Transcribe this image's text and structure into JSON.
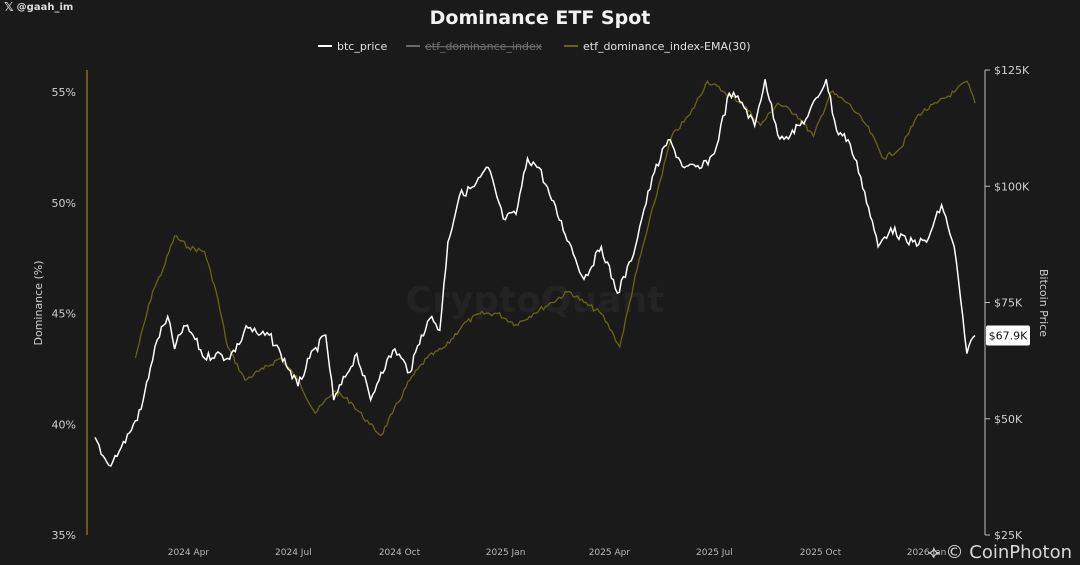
{
  "watermark_handle": "@gaah_im",
  "credit": "CoinPhoton",
  "colors": {
    "btc_price": "#ffffff",
    "etf_dominance_index": "#5a5a5a",
    "etf_dominance_ema": "#6b6414",
    "left_axis_line": "#8a6a1a",
    "background": "#1a1a1a",
    "price_badge_bg": "#ffffff",
    "price_badge_text": "#111111"
  },
  "chart_data": {
    "type": "line",
    "title": "Dominance ETF Spot",
    "ylabel": "Dominance (%)",
    "y2label": "Bitcoin Price",
    "xlim": [
      "2024-01-11",
      "2026-02-12"
    ],
    "ylim": [
      35,
      56
    ],
    "y2lim": [
      25000,
      125000
    ],
    "x_ticks": [
      "2024 Apr",
      "2024 Jul",
      "2024 Oct",
      "2025 Jan",
      "2025 Apr",
      "2025 Jul",
      "2025 Oct",
      "2026 Jan"
    ],
    "x_tick_dates": [
      "2024-04-01",
      "2024-07-01",
      "2024-10-01",
      "2025-01-01",
      "2025-04-01",
      "2025-07-01",
      "2025-10-01",
      "2026-01-01"
    ],
    "y_ticks": [
      "35%",
      "40%",
      "45%",
      "50%",
      "55%"
    ],
    "y_tick_values": [
      35,
      40,
      45,
      50,
      55
    ],
    "y2_ticks": [
      "$25K",
      "$50K",
      "$75K",
      "$100K",
      "$125K"
    ],
    "y2_tick_values": [
      25000,
      50000,
      75000,
      100000,
      125000
    ],
    "legend_position": "top-center",
    "grid": false,
    "last_price_label": "$67.9K",
    "last_price_value": 67900,
    "watermark": "CryptoQuant",
    "series": [
      {
        "name": "btc_price",
        "axis": "right",
        "x": [
          "2024-01-11",
          "2024-01-18",
          "2024-01-23",
          "2024-02-01",
          "2024-02-10",
          "2024-02-20",
          "2024-02-28",
          "2024-03-05",
          "2024-03-14",
          "2024-03-20",
          "2024-03-28",
          "2024-04-05",
          "2024-04-15",
          "2024-04-25",
          "2024-05-05",
          "2024-05-15",
          "2024-05-21",
          "2024-06-01",
          "2024-06-10",
          "2024-06-20",
          "2024-07-05",
          "2024-07-15",
          "2024-07-29",
          "2024-08-05",
          "2024-08-15",
          "2024-08-25",
          "2024-09-06",
          "2024-09-15",
          "2024-09-27",
          "2024-10-10",
          "2024-10-20",
          "2024-10-29",
          "2024-11-05",
          "2024-11-12",
          "2024-11-22",
          "2024-12-05",
          "2024-12-17",
          "2024-12-30",
          "2025-01-10",
          "2025-01-20",
          "2025-01-30",
          "2025-02-10",
          "2025-02-25",
          "2025-03-10",
          "2025-03-25",
          "2025-04-08",
          "2025-04-20",
          "2025-05-01",
          "2025-05-10",
          "2025-05-22",
          "2025-06-05",
          "2025-06-20",
          "2025-07-01",
          "2025-07-14",
          "2025-07-25",
          "2025-08-05",
          "2025-08-14",
          "2025-08-25",
          "2025-09-05",
          "2025-09-20",
          "2025-10-06",
          "2025-10-15",
          "2025-10-25",
          "2025-11-05",
          "2025-11-20",
          "2025-12-01",
          "2025-12-15",
          "2026-01-01",
          "2026-01-14",
          "2026-01-25",
          "2026-02-05",
          "2026-02-12"
        ],
        "values": [
          46000,
          42000,
          40000,
          43000,
          47000,
          52000,
          61000,
          67000,
          72000,
          65000,
          70000,
          68000,
          63000,
          64000,
          63000,
          66000,
          70000,
          68000,
          68000,
          64000,
          57000,
          63000,
          68000,
          54000,
          59000,
          64000,
          54000,
          60000,
          65000,
          60000,
          68000,
          72000,
          69000,
          88000,
          98000,
          100000,
          104000,
          93000,
          94000,
          106000,
          104000,
          97000,
          88000,
          80000,
          87000,
          77000,
          84000,
          95000,
          103000,
          110000,
          104000,
          104000,
          107000,
          120000,
          118000,
          113000,
          123000,
          111000,
          111000,
          115000,
          123000,
          112000,
          110000,
          102000,
          87000,
          91000,
          88000,
          88000,
          96000,
          87000,
          64000,
          67900
        ]
      },
      {
        "name": "etf_dominance_index-EMA(30)",
        "axis": "left",
        "x": [
          "2024-02-15",
          "2024-03-01",
          "2024-03-10",
          "2024-03-20",
          "2024-04-01",
          "2024-04-15",
          "2024-04-25",
          "2024-05-05",
          "2024-05-20",
          "2024-06-05",
          "2024-06-20",
          "2024-07-05",
          "2024-07-20",
          "2024-08-05",
          "2024-08-20",
          "2024-09-05",
          "2024-09-15",
          "2024-09-25",
          "2024-10-10",
          "2024-10-25",
          "2024-11-10",
          "2024-11-25",
          "2024-12-10",
          "2024-12-25",
          "2025-01-10",
          "2025-01-25",
          "2025-02-10",
          "2025-02-25",
          "2025-03-10",
          "2025-03-25",
          "2025-04-05",
          "2025-04-10",
          "2025-04-25",
          "2025-05-10",
          "2025-05-25",
          "2025-06-10",
          "2025-06-25",
          "2025-07-10",
          "2025-07-25",
          "2025-08-10",
          "2025-08-25",
          "2025-09-10",
          "2025-09-25",
          "2025-10-10",
          "2025-10-25",
          "2025-11-10",
          "2025-11-25",
          "2025-12-10",
          "2025-12-25",
          "2026-01-10",
          "2026-01-25",
          "2026-02-05",
          "2026-02-12"
        ],
        "values": [
          43.0,
          46.0,
          47.0,
          48.5,
          48.0,
          47.8,
          46.0,
          43.5,
          42.0,
          42.5,
          43.0,
          42.0,
          40.5,
          41.5,
          41.0,
          40.0,
          39.5,
          40.5,
          42.0,
          43.0,
          43.5,
          44.5,
          45.0,
          45.0,
          44.5,
          45.0,
          45.5,
          46.0,
          45.5,
          45.0,
          44.0,
          43.5,
          47.0,
          50.0,
          53.0,
          54.0,
          55.5,
          55.0,
          54.5,
          53.5,
          54.5,
          54.0,
          53.0,
          55.0,
          54.5,
          53.5,
          52.0,
          52.5,
          54.0,
          54.5,
          55.0,
          55.5,
          54.5
        ]
      }
    ]
  }
}
